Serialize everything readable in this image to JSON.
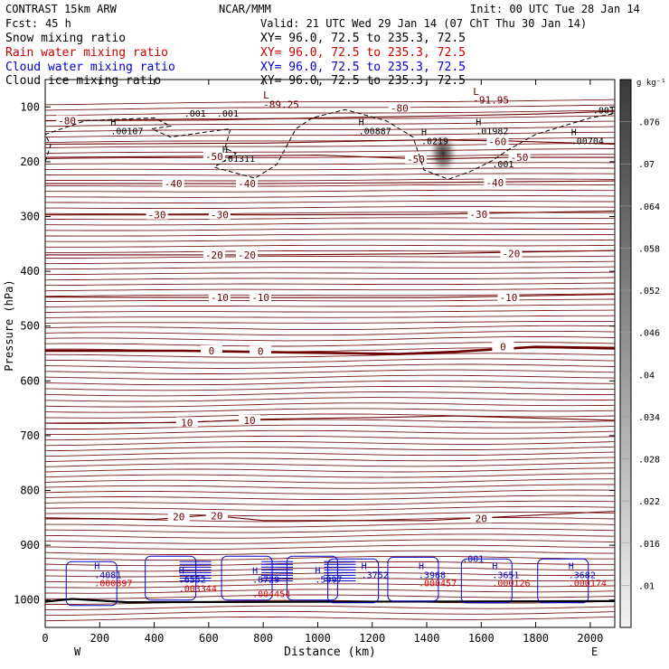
{
  "header": {
    "title_left": "CONTRAST 15km ARW",
    "title_center": "NCAR/MMM",
    "init": "Init: 00 UTC Tue 28 Jan 14",
    "fcst_label": "Fcst:",
    "fcst_value": "45 h",
    "valid": "Valid: 21 UTC Wed 29 Jan 14 (07 ChT Thu 30 Jan 14)"
  },
  "legend": [
    {
      "label": "Snow mixing ratio",
      "xy": "XY=  96.0, 72.5 to 235.3, 72.5",
      "color": "#000000"
    },
    {
      "label": "Rain water mixing ratio",
      "xy": "XY=  96.0, 72.5 to 235.3, 72.5",
      "color": "#cc0000"
    },
    {
      "label": "Cloud water mixing ratio",
      "xy": "XY=  96.0, 72.5 to 235.3, 72.5",
      "color": "#0000cc"
    },
    {
      "label": "Cloud ice mixing ratio",
      "xy": "XY=  96.0, 72.5 to 235.3, 72.5",
      "color": "#000000"
    }
  ],
  "chart_data": {
    "type": "heatmap",
    "xlabel": "Distance (km)",
    "ylabel": "Pressure (hPa)",
    "xlim": [
      0,
      2090
    ],
    "ylim": [
      1050,
      50
    ],
    "x_ticks": [
      0,
      200,
      400,
      600,
      800,
      1000,
      1200,
      1400,
      1600,
      1800,
      2000
    ],
    "y_ticks": [
      100,
      200,
      300,
      400,
      500,
      600,
      700,
      800,
      900,
      1000
    ],
    "end_labels": {
      "left": "W",
      "right": "E"
    },
    "colorbar": {
      "unit": "g kg⁻¹",
      "labels": [
        ".076",
        ".07",
        ".064",
        ".058",
        ".052",
        ".046",
        ".04",
        ".034",
        ".028",
        ".022",
        ".016",
        ".01"
      ],
      "min": 0.01,
      "max": 0.082
    },
    "cloud_ice_max": {
      "x_km": 1460,
      "p_hPa": 185
    },
    "temperature_contours": [
      {
        "label": "-80",
        "points": [
          [
            0,
            125
          ],
          [
            600,
            124
          ],
          [
            1000,
            120
          ],
          [
            1400,
            117
          ],
          [
            1800,
            113
          ],
          [
            2090,
            108
          ]
        ],
        "labels_at": [
          [
            80,
            125
          ],
          [
            1300,
            102
          ]
        ]
      },
      {
        "label": "-60",
        "points": [
          [
            0,
            168
          ],
          [
            800,
            166
          ],
          [
            1400,
            160
          ],
          [
            1700,
            162
          ],
          [
            2090,
            168
          ]
        ],
        "labels_at": [
          [
            1660,
            163
          ]
        ]
      },
      {
        "label": "-50",
        "points": [
          [
            0,
            192
          ],
          [
            600,
            190
          ],
          [
            1000,
            188
          ],
          [
            1400,
            195
          ],
          [
            1700,
            192
          ],
          [
            2090,
            192
          ]
        ],
        "labels_at": [
          [
            620,
            190
          ],
          [
            1360,
            195
          ],
          [
            1740,
            192
          ]
        ]
      },
      {
        "label": "-40",
        "points": [
          [
            0,
            240
          ],
          [
            800,
            240
          ],
          [
            1400,
            238
          ],
          [
            2090,
            235
          ]
        ],
        "labels_at": [
          [
            470,
            240
          ],
          [
            740,
            240
          ],
          [
            1650,
            238
          ]
        ]
      },
      {
        "label": "-30",
        "points": [
          [
            0,
            297
          ],
          [
            800,
            297
          ],
          [
            1400,
            296
          ],
          [
            2090,
            290
          ]
        ],
        "labels_at": [
          [
            410,
            297
          ],
          [
            640,
            297
          ],
          [
            1590,
            296
          ]
        ]
      },
      {
        "label": "-20",
        "points": [
          [
            0,
            370
          ],
          [
            800,
            370
          ],
          [
            1400,
            368
          ],
          [
            2090,
            362
          ]
        ],
        "labels_at": [
          [
            620,
            370
          ],
          [
            740,
            370
          ],
          [
            1710,
            368
          ]
        ]
      },
      {
        "label": "-10",
        "points": [
          [
            0,
            447
          ],
          [
            800,
            448
          ],
          [
            1400,
            448
          ],
          [
            2090,
            442
          ]
        ],
        "labels_at": [
          [
            640,
            448
          ],
          [
            790,
            448
          ],
          [
            1700,
            448
          ]
        ]
      },
      {
        "label": "0",
        "points": [
          [
            0,
            545
          ],
          [
            500,
            545
          ],
          [
            900,
            548
          ],
          [
            1300,
            551
          ],
          [
            1500,
            547
          ],
          [
            1800,
            538
          ],
          [
            2090,
            540
          ]
        ],
        "labels_at": [
          [
            610,
            545
          ],
          [
            790,
            546
          ],
          [
            1680,
            538
          ]
        ]
      },
      {
        "label": "10",
        "points": [
          [
            0,
            677
          ],
          [
            500,
            676
          ],
          [
            800,
            670
          ],
          [
            1200,
            667
          ],
          [
            1500,
            664
          ],
          [
            2090,
            672
          ]
        ],
        "labels_at": [
          [
            520,
            676
          ],
          [
            750,
            672
          ]
        ]
      },
      {
        "label": "20",
        "points": [
          [
            0,
            850
          ],
          [
            400,
            853
          ],
          [
            600,
            845
          ],
          [
            800,
            855
          ],
          [
            1400,
            855
          ],
          [
            1800,
            845
          ],
          [
            2090,
            838
          ]
        ],
        "labels_at": [
          [
            490,
            848
          ],
          [
            630,
            846
          ],
          [
            1600,
            851
          ]
        ]
      }
    ],
    "snow_maxima": [
      {
        "text": ".00107",
        "x_km": 240,
        "p_hPa": 150
      },
      {
        "text": ".01311",
        "x_km": 650,
        "p_hPa": 200
      },
      {
        "text": ".00887",
        "x_km": 1150,
        "p_hPa": 150
      },
      {
        "text": ".0219",
        "x_km": 1380,
        "p_hPa": 168
      },
      {
        "text": ".01982",
        "x_km": 1580,
        "p_hPa": 150
      },
      {
        "text": ".00704",
        "x_km": 1930,
        "p_hPa": 168
      }
    ],
    "rain_maxima": [
      {
        "text": ".000897",
        "x_km": 180,
        "p_hPa": 975
      },
      {
        "text": ".003344",
        "x_km": 490,
        "p_hPa": 985
      },
      {
        "text": ".004454",
        "x_km": 760,
        "p_hPa": 995
      },
      {
        "text": ".000457",
        "x_km": 1370,
        "p_hPa": 975
      },
      {
        "text": ".000126",
        "x_km": 1640,
        "p_hPa": 975
      },
      {
        "text": ".000174",
        "x_km": 1920,
        "p_hPa": 975
      }
    ],
    "cloud_water_maxima": [
      {
        "text": ".4081",
        "x_km": 180,
        "p_hPa": 960
      },
      {
        "text": ".6552",
        "x_km": 490,
        "p_hPa": 968
      },
      {
        "text": ".6729",
        "x_km": 760,
        "p_hPa": 968
      },
      {
        "text": ".5997",
        "x_km": 990,
        "p_hPa": 968
      },
      {
        "text": ".3752",
        "x_km": 1160,
        "p_hPa": 960
      },
      {
        "text": ".3968",
        "x_km": 1370,
        "p_hPa": 960
      },
      {
        "text": ".3651",
        "x_km": 1640,
        "p_hPa": 960
      },
      {
        "text": ".3682",
        "x_km": 1920,
        "p_hPa": 960
      },
      {
        "text": ".001",
        "x_km": 1530,
        "p_hPa": 930
      }
    ],
    "cloud_ice_maxima": [
      {
        "text": ".001",
        "x_km": 510,
        "p_hPa": 118
      },
      {
        "text": ".001",
        "x_km": 630,
        "p_hPa": 118
      },
      {
        "text": ".001",
        "x_km": 1640,
        "p_hPa": 210
      },
      {
        "text": ".001",
        "x_km": 2010,
        "p_hPa": 112
      }
    ],
    "low_labels": [
      {
        "text": "L",
        "x_km": 800,
        "p_hPa": 85
      },
      {
        "text": "-89.25",
        "x_km": 800,
        "p_hPa": 102
      },
      {
        "text": "L",
        "x_km": 1570,
        "p_hPa": 78
      },
      {
        "text": "-91.95",
        "x_km": 1570,
        "p_hPa": 94
      }
    ]
  }
}
